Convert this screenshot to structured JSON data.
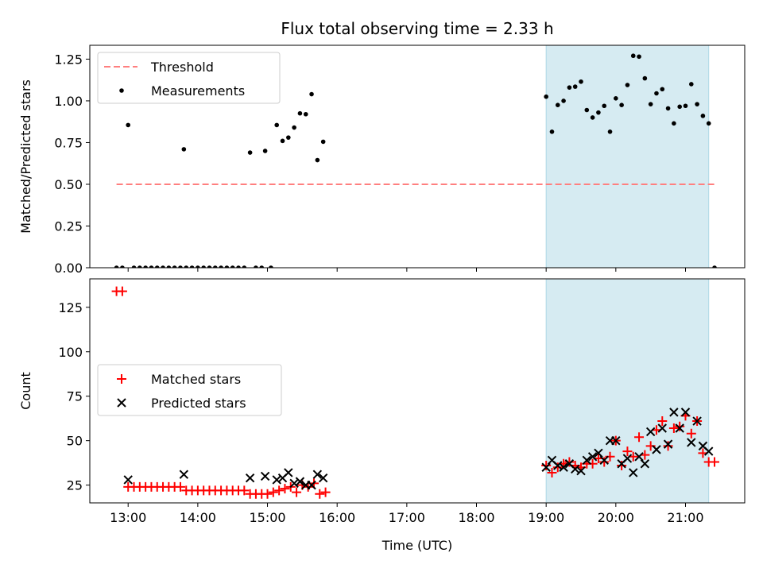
{
  "chart_data": {
    "title": "Flux total observing time = 2.33 h",
    "xlabel": "Time (UTC)",
    "x_ticks": [
      "13:00",
      "14:00",
      "15:00",
      "16:00",
      "17:00",
      "18:00",
      "19:00",
      "20:00",
      "21:00"
    ],
    "xlim": [
      "12:27",
      "21:51"
    ],
    "shaded_interval": {
      "start": "19:00",
      "end": "21:20",
      "color": "#add8e6"
    },
    "panels": [
      {
        "type": "scatter",
        "ylabel": "Matched/Predicted stars",
        "ylim": [
          0,
          1.333
        ],
        "y_ticks": [
          "0.00",
          "0.25",
          "0.50",
          "0.75",
          "1.00",
          "1.25"
        ],
        "legend": [
          "Threshold",
          "Measurements"
        ],
        "legend_position": "upper-left",
        "threshold": {
          "name": "Threshold",
          "value": 0.5,
          "x_start": "12:50",
          "x_end": "21:25",
          "color": "#ff7f7f"
        },
        "series": [
          {
            "name": "Measurements",
            "color": "#000000",
            "points": [
              [
                "12:50",
                0
              ],
              [
                "12:55",
                0
              ],
              [
                "13:00",
                0.855
              ],
              [
                "13:05",
                0
              ],
              [
                "13:10",
                0
              ],
              [
                "13:15",
                0
              ],
              [
                "13:20",
                0
              ],
              [
                "13:25",
                0
              ],
              [
                "13:30",
                0
              ],
              [
                "13:35",
                0
              ],
              [
                "13:40",
                0
              ],
              [
                "13:45",
                0
              ],
              [
                "13:50",
                0
              ],
              [
                "13:55",
                0
              ],
              [
                "13:48",
                0.71
              ],
              [
                "14:00",
                0
              ],
              [
                "14:05",
                0
              ],
              [
                "14:10",
                0
              ],
              [
                "14:15",
                0
              ],
              [
                "14:20",
                0
              ],
              [
                "14:25",
                0
              ],
              [
                "14:30",
                0
              ],
              [
                "14:35",
                0
              ],
              [
                "14:40",
                0
              ],
              [
                "14:45",
                0.69
              ],
              [
                "14:50",
                0
              ],
              [
                "14:55",
                0
              ],
              [
                "14:58",
                0.7
              ],
              [
                "15:03",
                0
              ],
              [
                "15:08",
                0.855
              ],
              [
                "15:13",
                0.76
              ],
              [
                "15:18",
                0.78
              ],
              [
                "15:23",
                0.84
              ],
              [
                "15:28",
                0.925
              ],
              [
                "15:33",
                0.92
              ],
              [
                "15:38",
                1.04
              ],
              [
                "15:43",
                0.645
              ],
              [
                "15:48",
                0.755
              ],
              [
                "19:00",
                1.025
              ],
              [
                "19:05",
                0.815
              ],
              [
                "19:10",
                0.975
              ],
              [
                "19:15",
                1.0
              ],
              [
                "19:20",
                1.08
              ],
              [
                "19:25",
                1.085
              ],
              [
                "19:30",
                1.115
              ],
              [
                "19:35",
                0.945
              ],
              [
                "19:40",
                0.9
              ],
              [
                "19:45",
                0.93
              ],
              [
                "19:50",
                0.97
              ],
              [
                "19:55",
                0.815
              ],
              [
                "20:00",
                1.015
              ],
              [
                "20:05",
                0.975
              ],
              [
                "20:10",
                1.095
              ],
              [
                "20:15",
                1.27
              ],
              [
                "20:20",
                1.265
              ],
              [
                "20:25",
                1.135
              ],
              [
                "20:30",
                0.98
              ],
              [
                "20:35",
                1.045
              ],
              [
                "20:40",
                1.07
              ],
              [
                "20:45",
                0.955
              ],
              [
                "20:50",
                0.865
              ],
              [
                "20:55",
                0.965
              ],
              [
                "21:00",
                0.97
              ],
              [
                "21:05",
                1.1
              ],
              [
                "21:10",
                0.98
              ],
              [
                "21:15",
                0.91
              ],
              [
                "21:20",
                0.865
              ],
              [
                "21:25",
                0
              ]
            ]
          }
        ]
      },
      {
        "type": "scatter",
        "ylabel": "Count",
        "ylim": [
          15,
          141
        ],
        "y_ticks": [
          "25",
          "50",
          "75",
          "100",
          "125"
        ],
        "legend": [
          "Matched stars",
          "Predicted stars"
        ],
        "legend_position": "center-left",
        "series": [
          {
            "name": "Matched stars",
            "color": "#ff0000",
            "marker": "+",
            "points": [
              [
                "12:50",
                134
              ],
              [
                "12:55",
                134
              ],
              [
                "13:00",
                24
              ],
              [
                "13:05",
                24
              ],
              [
                "13:10",
                24
              ],
              [
                "13:15",
                24
              ],
              [
                "13:20",
                24
              ],
              [
                "13:25",
                24
              ],
              [
                "13:30",
                24
              ],
              [
                "13:35",
                24
              ],
              [
                "13:40",
                24
              ],
              [
                "13:45",
                24
              ],
              [
                "13:50",
                22
              ],
              [
                "13:55",
                22
              ],
              [
                "14:00",
                22
              ],
              [
                "14:05",
                22
              ],
              [
                "14:10",
                22
              ],
              [
                "14:15",
                22
              ],
              [
                "14:20",
                22
              ],
              [
                "14:25",
                22
              ],
              [
                "14:30",
                22
              ],
              [
                "14:35",
                22
              ],
              [
                "14:40",
                22
              ],
              [
                "14:45",
                20
              ],
              [
                "14:50",
                20
              ],
              [
                "14:55",
                20
              ],
              [
                "15:00",
                20
              ],
              [
                "15:05",
                21
              ],
              [
                "15:10",
                22
              ],
              [
                "15:15",
                23
              ],
              [
                "15:20",
                24
              ],
              [
                "15:25",
                21
              ],
              [
                "15:30",
                25
              ],
              [
                "15:35",
                24
              ],
              [
                "15:40",
                26
              ],
              [
                "15:45",
                20
              ],
              [
                "15:50",
                21
              ],
              [
                "19:00",
                36
              ],
              [
                "19:05",
                32
              ],
              [
                "19:10",
                35
              ],
              [
                "19:15",
                37
              ],
              [
                "19:20",
                38
              ],
              [
                "19:25",
                36
              ],
              [
                "19:30",
                35
              ],
              [
                "19:35",
                37
              ],
              [
                "19:40",
                37
              ],
              [
                "19:45",
                40
              ],
              [
                "19:50",
                38
              ],
              [
                "19:55",
                41
              ],
              [
                "20:00",
                50
              ],
              [
                "20:05",
                36
              ],
              [
                "20:10",
                44
              ],
              [
                "20:15",
                41
              ],
              [
                "20:20",
                52
              ],
              [
                "20:25",
                42
              ],
              [
                "20:30",
                47
              ],
              [
                "20:35",
                56
              ],
              [
                "20:40",
                61
              ],
              [
                "20:45",
                47
              ],
              [
                "20:50",
                57
              ],
              [
                "20:55",
                58
              ],
              [
                "21:00",
                64
              ],
              [
                "21:05",
                54
              ],
              [
                "21:10",
                61
              ],
              [
                "21:15",
                43
              ],
              [
                "21:20",
                38
              ],
              [
                "21:25",
                38
              ]
            ]
          },
          {
            "name": "Predicted stars",
            "color": "#000000",
            "marker": "x",
            "points": [
              [
                "13:00",
                28
              ],
              [
                "13:48",
                31
              ],
              [
                "14:45",
                29
              ],
              [
                "14:58",
                30
              ],
              [
                "15:08",
                28
              ],
              [
                "15:13",
                29
              ],
              [
                "15:18",
                32
              ],
              [
                "15:23",
                26
              ],
              [
                "15:28",
                27
              ],
              [
                "15:33",
                25
              ],
              [
                "15:38",
                25
              ],
              [
                "15:43",
                31
              ],
              [
                "15:48",
                29
              ],
              [
                "19:00",
                35
              ],
              [
                "19:05",
                39
              ],
              [
                "19:10",
                36
              ],
              [
                "19:15",
                35
              ],
              [
                "19:20",
                37
              ],
              [
                "19:25",
                34
              ],
              [
                "19:30",
                33
              ],
              [
                "19:35",
                39
              ],
              [
                "19:40",
                41
              ],
              [
                "19:45",
                43
              ],
              [
                "19:50",
                39
              ],
              [
                "19:55",
                50
              ],
              [
                "20:00",
                50
              ],
              [
                "20:05",
                37
              ],
              [
                "20:10",
                40
              ],
              [
                "20:15",
                32
              ],
              [
                "20:20",
                41
              ],
              [
                "20:25",
                37
              ],
              [
                "20:30",
                55
              ],
              [
                "20:35",
                45
              ],
              [
                "20:40",
                57
              ],
              [
                "20:45",
                48
              ],
              [
                "20:50",
                66
              ],
              [
                "20:55",
                57
              ],
              [
                "21:00",
                66
              ],
              [
                "21:05",
                49
              ],
              [
                "21:10",
                61
              ],
              [
                "21:15",
                47
              ],
              [
                "21:20",
                44
              ]
            ]
          }
        ]
      }
    ]
  }
}
